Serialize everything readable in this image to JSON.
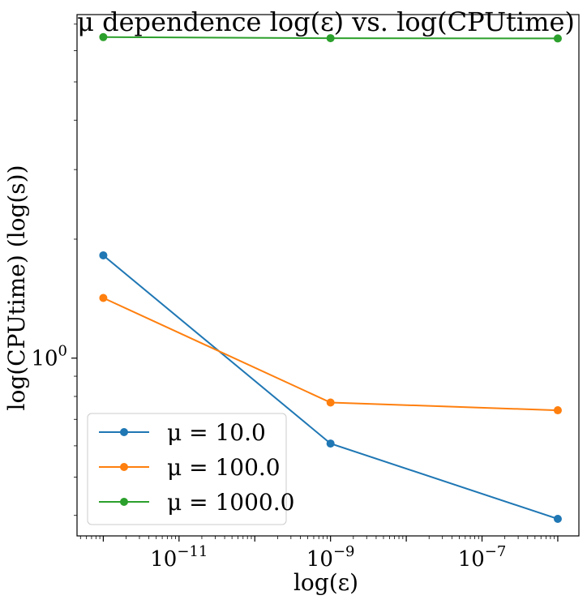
{
  "chart_data": {
    "type": "line",
    "title": "μ dependence log(ε) vs. log(CPUtime)",
    "xlabel": "log(ε)",
    "ylabel": "log(CPUtime) (log(s))",
    "x_scale": "log",
    "y_scale": "log",
    "xlim": [
      4.5e-13,
      1.9e-06
    ],
    "ylim": [
      0.355,
      7.4
    ],
    "x": [
      1e-12,
      1e-09,
      1e-06
    ],
    "x_ticks": [
      {
        "value": 1e-11,
        "base": "10",
        "exp": "−11"
      },
      {
        "value": 1e-09,
        "base": "10",
        "exp": "−9"
      },
      {
        "value": 1e-07,
        "base": "10",
        "exp": "−7"
      }
    ],
    "y_ticks": [
      {
        "value": 1,
        "base": "10",
        "exp": "0"
      }
    ],
    "y_minor_ticks": [
      0.4,
      0.5,
      0.6,
      0.7,
      0.8,
      0.9,
      2,
      3,
      4,
      5,
      6,
      7
    ],
    "grid": false,
    "legend_position": "lower-left",
    "series": [
      {
        "name": "μ = 10.0",
        "color": "#1f77b4",
        "values": [
          1.82,
          0.608,
          0.392
        ]
      },
      {
        "name": "μ = 100.0",
        "color": "#ff7f0e",
        "values": [
          1.42,
          0.772,
          0.738
        ]
      },
      {
        "name": "μ = 1000.0",
        "color": "#2ca02c",
        "values": [
          6.49,
          6.45,
          6.44
        ]
      }
    ]
  }
}
